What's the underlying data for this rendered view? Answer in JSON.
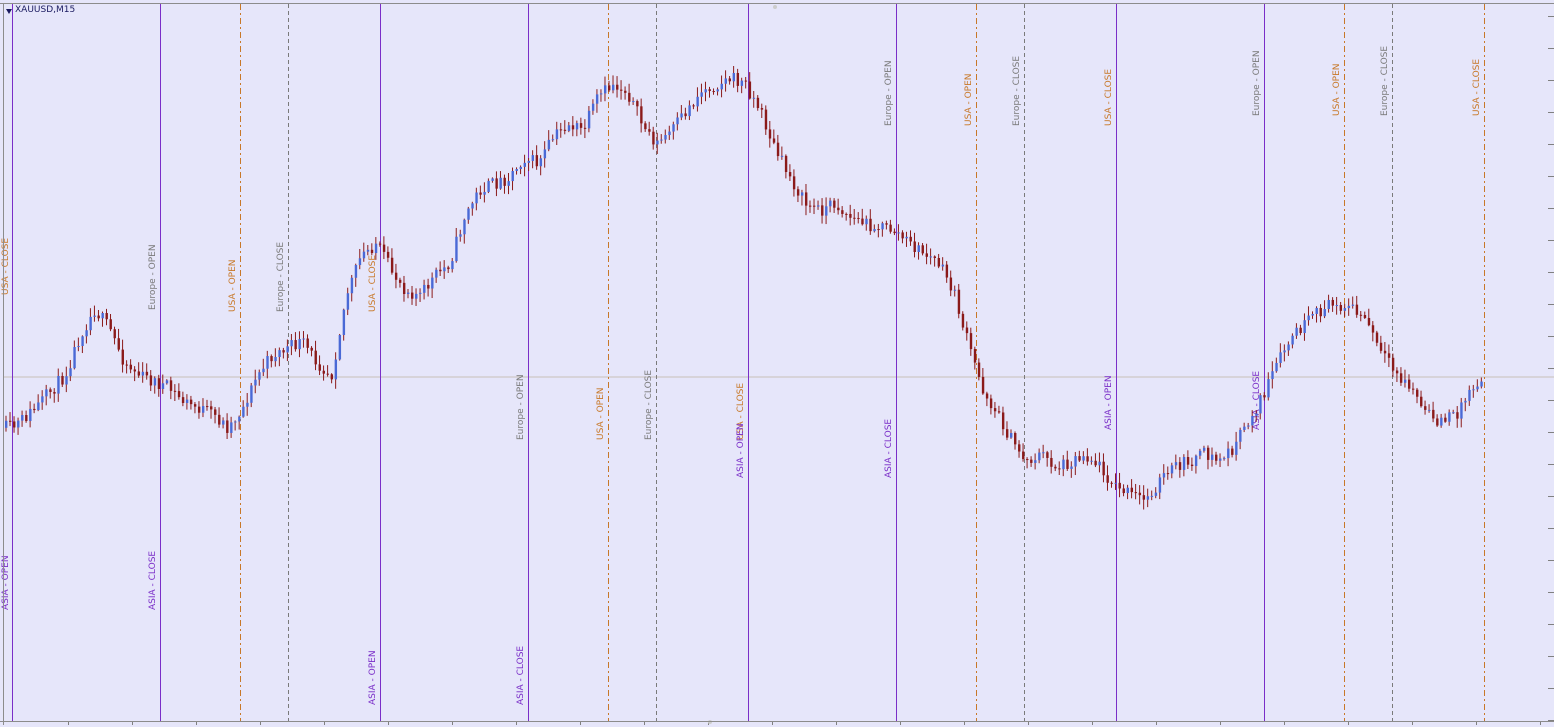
{
  "window": {
    "symbol_label": "XAUUSD,M15"
  },
  "colors": {
    "background": "#e6e6fa",
    "bull": "#4a69d6",
    "bear": "#8b1a1a",
    "asia": "#7a2ec8",
    "europe": "#7a7a7a",
    "usa": "#c87828",
    "price_line": "#c8c0b8"
  },
  "session_markers": [
    {
      "label": "ASIA - OPEN",
      "session": "asia"
    },
    {
      "label": "USA - CLOSE",
      "session": "usa"
    },
    {
      "label": "ASIA - CLOSE",
      "session": "asia"
    },
    {
      "label": "Europe - OPEN",
      "session": "europe"
    },
    {
      "label": "USA - OPEN",
      "session": "usa"
    },
    {
      "label": "Europe - CLOSE",
      "session": "europe"
    },
    {
      "label": "USA - CLOSE",
      "session": "usa"
    },
    {
      "label": "ASIA - OPEN",
      "session": "asia"
    },
    {
      "label": "ASIA - CLOSE",
      "session": "asia"
    },
    {
      "label": "Europe - OPEN",
      "session": "europe"
    },
    {
      "label": "USA - OPEN",
      "session": "usa"
    },
    {
      "label": "Europe - CLOSE",
      "session": "europe"
    },
    {
      "label": "USA - CLOSE",
      "session": "usa"
    },
    {
      "label": "ASIA - OPEN",
      "session": "asia"
    },
    {
      "label": "ASIA - CLOSE",
      "session": "asia"
    },
    {
      "label": "Europe - OPEN",
      "session": "europe"
    },
    {
      "label": "USA - OPEN",
      "session": "usa"
    },
    {
      "label": "Europe - CLOSE",
      "session": "europe"
    },
    {
      "label": "USA - CLOSE",
      "session": "usa"
    },
    {
      "label": "ASIA - OPEN",
      "session": "asia"
    },
    {
      "label": "ASIA - CLOSE",
      "session": "asia"
    },
    {
      "label": "Europe - OPEN",
      "session": "europe"
    },
    {
      "label": "USA - OPEN",
      "session": "usa"
    },
    {
      "label": "Europe - CLOSE",
      "session": "europe"
    },
    {
      "label": "USA - CLOSE",
      "session": "usa"
    }
  ],
  "chart_data": {
    "type": "candlestick",
    "price_trace": [
      [
        0,
        0.42
      ],
      [
        0.5,
        0.42
      ],
      [
        2,
        0.45
      ],
      [
        4,
        0.5
      ],
      [
        5,
        0.56
      ],
      [
        6,
        0.6
      ],
      [
        7,
        0.57
      ],
      [
        8,
        0.52
      ],
      [
        9,
        0.5
      ],
      [
        10,
        0.49
      ],
      [
        11,
        0.48
      ],
      [
        12,
        0.46
      ],
      [
        14,
        0.44
      ],
      [
        15,
        0.42
      ],
      [
        16,
        0.45
      ],
      [
        17,
        0.5
      ],
      [
        18,
        0.53
      ],
      [
        19,
        0.54
      ],
      [
        20,
        0.55
      ],
      [
        21,
        0.52
      ],
      [
        22,
        0.5
      ],
      [
        23,
        0.62
      ],
      [
        24,
        0.68
      ],
      [
        25,
        0.7
      ],
      [
        26,
        0.66
      ],
      [
        27,
        0.63
      ],
      [
        28,
        0.62
      ],
      [
        29,
        0.65
      ],
      [
        30,
        0.67
      ],
      [
        31,
        0.74
      ],
      [
        32,
        0.78
      ],
      [
        34,
        0.8
      ],
      [
        35,
        0.83
      ],
      [
        36,
        0.82
      ],
      [
        37,
        0.86
      ],
      [
        38,
        0.88
      ],
      [
        39,
        0.87
      ],
      [
        40,
        0.92
      ],
      [
        41,
        0.94
      ],
      [
        42,
        0.93
      ],
      [
        43,
        0.88
      ],
      [
        44,
        0.85
      ],
      [
        45,
        0.87
      ],
      [
        46,
        0.9
      ],
      [
        47,
        0.93
      ],
      [
        48,
        0.94
      ],
      [
        49,
        0.95
      ],
      [
        50,
        0.94
      ],
      [
        51,
        0.9
      ],
      [
        52,
        0.84
      ],
      [
        53,
        0.8
      ],
      [
        54,
        0.76
      ],
      [
        55,
        0.75
      ],
      [
        56,
        0.76
      ],
      [
        57,
        0.74
      ],
      [
        58,
        0.73
      ],
      [
        60,
        0.72
      ],
      [
        61,
        0.7
      ],
      [
        63,
        0.67
      ],
      [
        64,
        0.63
      ],
      [
        65,
        0.55
      ],
      [
        66,
        0.48
      ],
      [
        67,
        0.44
      ],
      [
        68,
        0.4
      ],
      [
        69,
        0.37
      ],
      [
        70,
        0.38
      ],
      [
        71,
        0.36
      ],
      [
        72,
        0.37
      ],
      [
        73,
        0.38
      ],
      [
        74,
        0.36
      ],
      [
        75,
        0.33
      ],
      [
        76,
        0.32
      ],
      [
        77,
        0.31
      ],
      [
        78,
        0.34
      ],
      [
        79,
        0.36
      ],
      [
        80,
        0.37
      ],
      [
        81,
        0.38
      ],
      [
        82,
        0.37
      ],
      [
        83,
        0.39
      ],
      [
        84,
        0.43
      ],
      [
        85,
        0.47
      ],
      [
        86,
        0.52
      ],
      [
        87,
        0.56
      ],
      [
        88,
        0.58
      ],
      [
        89,
        0.6
      ],
      [
        90,
        0.61
      ],
      [
        91,
        0.6
      ],
      [
        92,
        0.58
      ],
      [
        93,
        0.53
      ],
      [
        94,
        0.5
      ],
      [
        95,
        0.48
      ],
      [
        96,
        0.44
      ],
      [
        97,
        0.43
      ],
      [
        98,
        0.44
      ],
      [
        99,
        0.48
      ],
      [
        100,
        0.5
      ]
    ],
    "current_price_level_fraction": 0.48
  }
}
